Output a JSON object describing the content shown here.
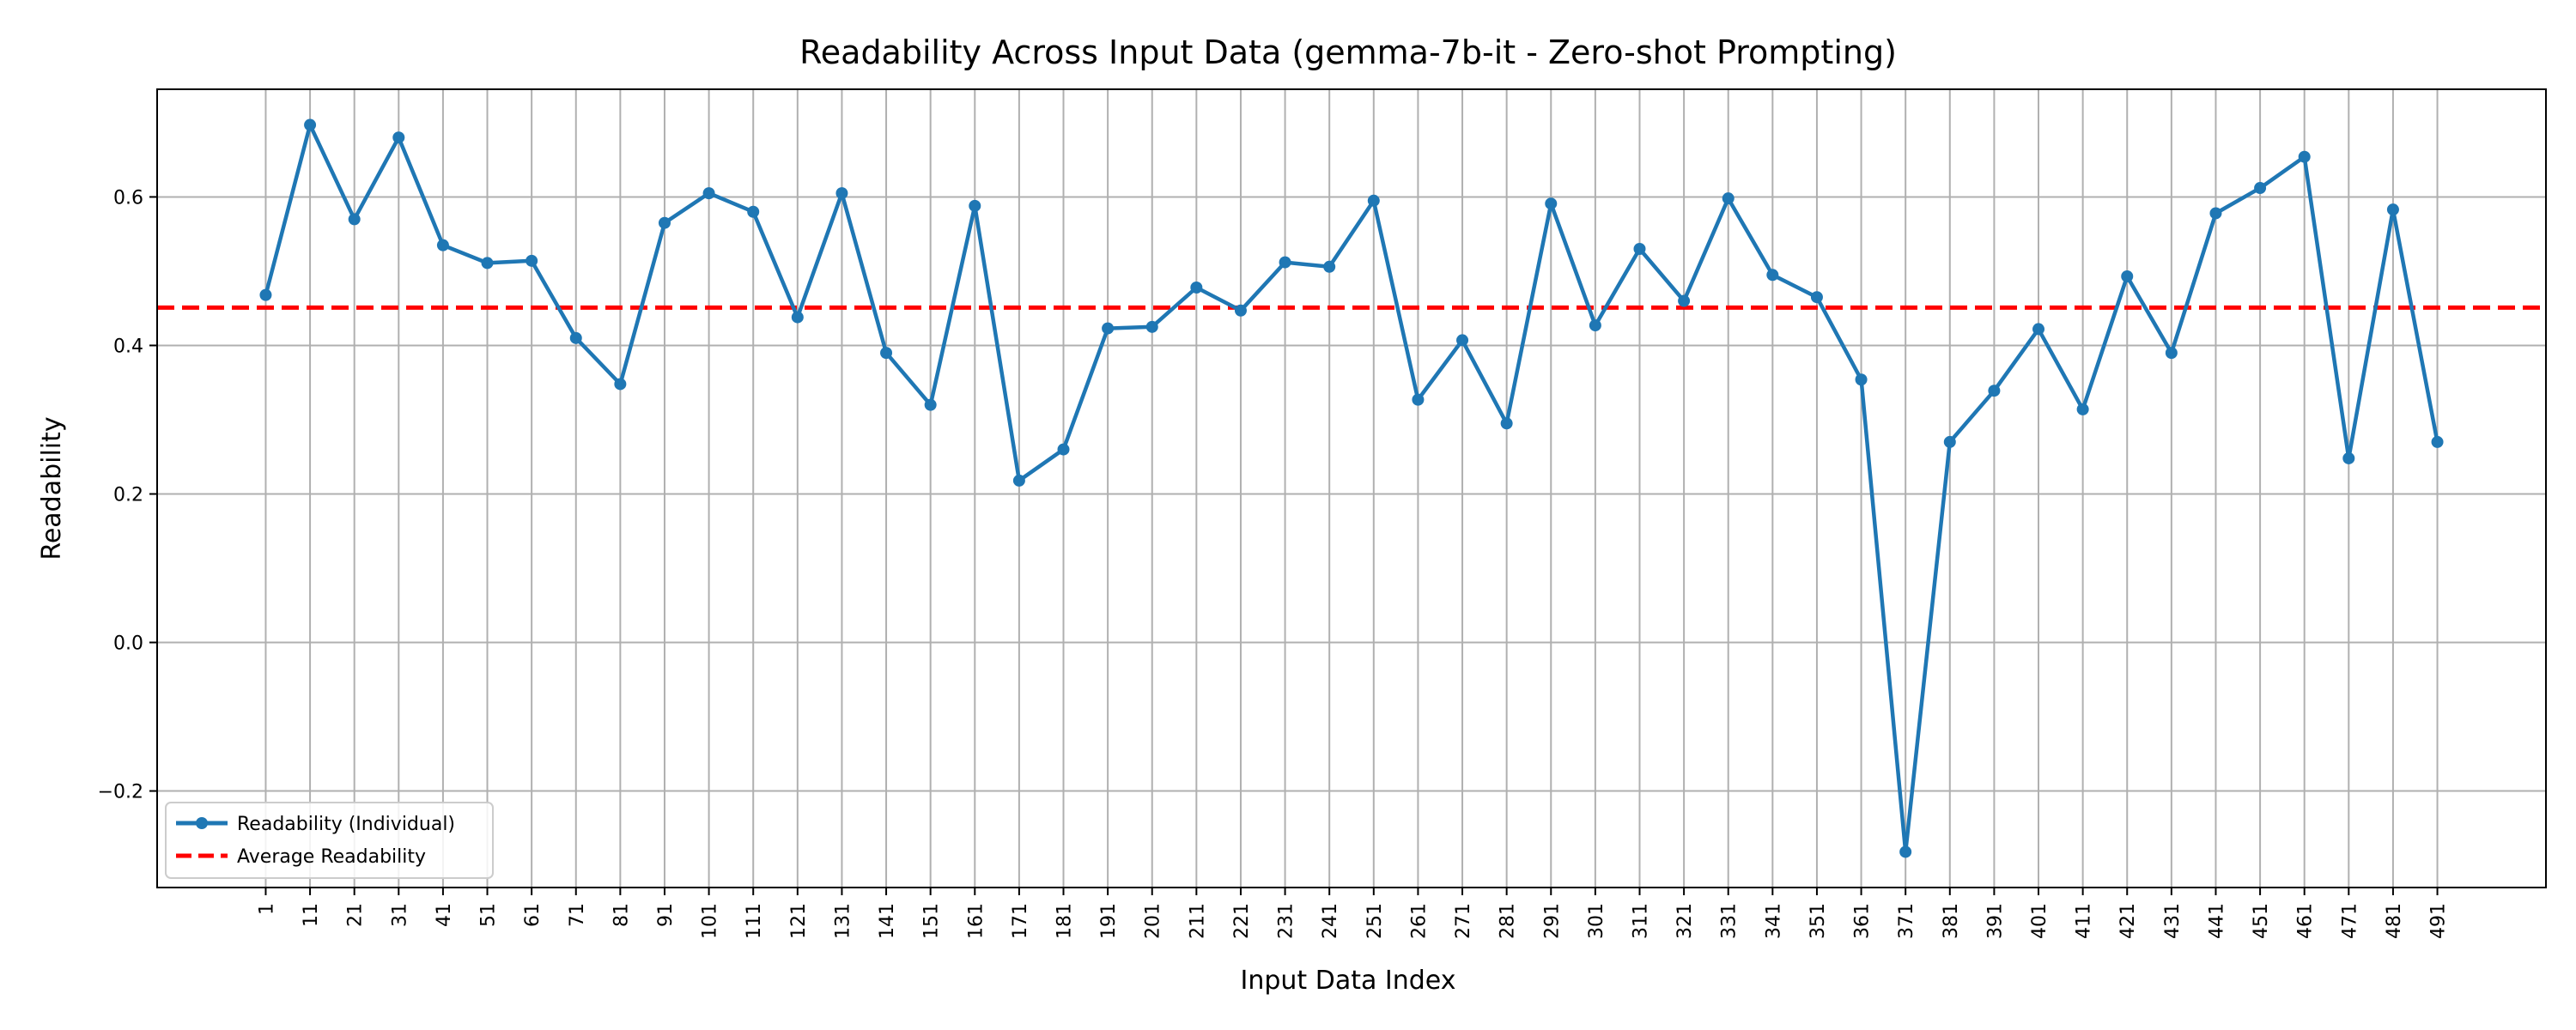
{
  "chart_data": {
    "type": "line",
    "title": "Readability Across Input Data (gemma-7b-it - Zero-shot Prompting)",
    "xlabel": "Input Data Index",
    "ylabel": "Readability",
    "x": [
      1,
      11,
      21,
      31,
      41,
      51,
      61,
      71,
      81,
      91,
      101,
      111,
      121,
      131,
      141,
      151,
      161,
      171,
      181,
      191,
      201,
      211,
      221,
      231,
      241,
      251,
      261,
      271,
      281,
      291,
      301,
      311,
      321,
      331,
      341,
      351,
      361,
      371,
      381,
      391,
      401,
      411,
      421,
      431,
      441,
      451,
      461,
      471,
      481,
      491
    ],
    "xticks": [
      "1",
      "11",
      "21",
      "31",
      "41",
      "51",
      "61",
      "71",
      "81",
      "91",
      "101",
      "111",
      "121",
      "131",
      "141",
      "151",
      "161",
      "171",
      "181",
      "191",
      "201",
      "211",
      "221",
      "231",
      "241",
      "251",
      "261",
      "271",
      "281",
      "291",
      "301",
      "311",
      "321",
      "331",
      "341",
      "351",
      "361",
      "371",
      "381",
      "391",
      "401",
      "411",
      "421",
      "431",
      "441",
      "451",
      "461",
      "471",
      "481",
      "491"
    ],
    "yticks": [
      "−0.2",
      "0.0",
      "0.2",
      "0.4",
      "0.6"
    ],
    "ytick_values": [
      -0.2,
      0.0,
      0.2,
      0.4,
      0.6
    ],
    "xlim": [
      -23.5,
      515.5
    ],
    "ylim": [
      -0.33,
      0.745
    ],
    "grid": true,
    "legend_position": "bottom-left",
    "series": [
      {
        "name": "Readability (Individual)",
        "color": "#1f77b4",
        "style": "line-with-markers",
        "values": [
          0.468,
          0.697,
          0.57,
          0.68,
          0.535,
          0.511,
          0.514,
          0.41,
          0.348,
          0.565,
          0.605,
          0.58,
          0.438,
          0.605,
          0.39,
          0.32,
          0.588,
          0.218,
          0.26,
          0.423,
          0.425,
          0.478,
          0.447,
          0.512,
          0.506,
          0.595,
          0.327,
          0.407,
          0.295,
          0.591,
          0.427,
          0.53,
          0.46,
          0.598,
          0.495,
          0.465,
          0.354,
          -0.282,
          0.27,
          0.339,
          0.422,
          0.314,
          0.493,
          0.39,
          0.578,
          0.612,
          0.654,
          0.248,
          0.583,
          0.27
        ]
      },
      {
        "name": "Average Readability",
        "color": "#ff0000",
        "style": "dashed-hline",
        "value": 0.451
      }
    ]
  }
}
